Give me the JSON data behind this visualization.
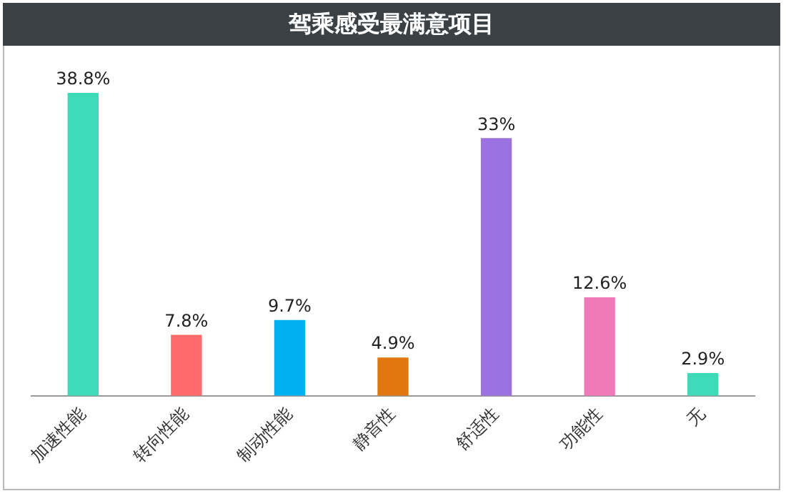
{
  "chart_data": {
    "type": "bar",
    "title": "驾乘感受最满意项目",
    "categories": [
      "加速性能",
      "转向性能",
      "制动性能",
      "静音性",
      "舒适性",
      "功能性",
      "无"
    ],
    "values": [
      38.8,
      7.8,
      9.7,
      4.9,
      33,
      12.6,
      2.9
    ],
    "colors": [
      "#3ddbb8",
      "#ff6b6b",
      "#00b0f0",
      "#e0780f",
      "#9c72e0",
      "#f07ab9",
      "#3ddbb8"
    ],
    "value_labels": [
      "38.8%",
      "7.8%",
      "9.7%",
      "4.9%",
      "33%",
      "12.6%",
      "2.9%"
    ],
    "grid": false,
    "legend": false
  }
}
